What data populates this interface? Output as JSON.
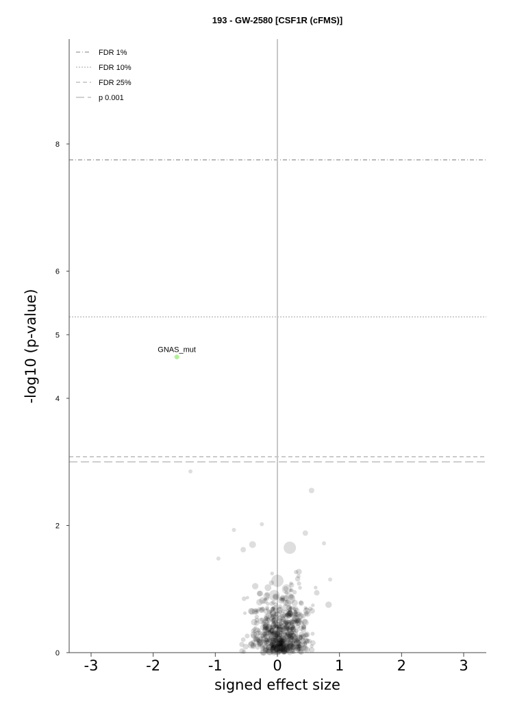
{
  "chart_data": {
    "type": "scatter",
    "title": "193 - GW-2580 [CSF1R (cFMS)]",
    "xlabel": "signed effect size",
    "ylabel": "-log10 (p-value)",
    "xlim": [
      -3.35,
      3.35
    ],
    "ylim": [
      0,
      9.6
    ],
    "xticks": [
      -3,
      -2,
      -1,
      0,
      1,
      2,
      3
    ],
    "yticks": [
      0,
      2,
      4,
      5,
      6,
      8
    ],
    "grid": false,
    "legend_position": "top-left",
    "thresholds": [
      {
        "name": "FDR 1%",
        "y": 7.75,
        "style": "dashdot",
        "color": "#999999"
      },
      {
        "name": "FDR 10%",
        "y": 5.28,
        "style": "dotted",
        "color": "#b3b3b3"
      },
      {
        "name": "FDR 25%",
        "y": 3.08,
        "style": "dashed",
        "color": "#b3b3b3"
      },
      {
        "name": "p 0.001",
        "y": 3.0,
        "style": "longdash",
        "color": "#b3b3b3"
      }
    ],
    "highlight": {
      "label": "GNAS_mut",
      "x": -1.62,
      "y": 4.65,
      "color": "#b3f09a"
    },
    "notable_points": [
      {
        "x": -1.4,
        "y": 2.85,
        "size": 3
      },
      {
        "x": 0.55,
        "y": 2.55,
        "size": 4
      },
      {
        "x": 0.2,
        "y": 1.65,
        "size": 9
      },
      {
        "x": 0.0,
        "y": 1.13,
        "size": 9
      },
      {
        "x": 0.15,
        "y": 1.0,
        "size": 7
      },
      {
        "x": 0.2,
        "y": 0.85,
        "size": 8
      },
      {
        "x": -0.05,
        "y": 0.9,
        "size": 8
      },
      {
        "x": -0.25,
        "y": 2.02,
        "size": 3
      },
      {
        "x": -0.7,
        "y": 1.93,
        "size": 3
      },
      {
        "x": 0.45,
        "y": 1.88,
        "size": 4
      },
      {
        "x": -0.4,
        "y": 1.7,
        "size": 5
      },
      {
        "x": 0.75,
        "y": 1.72,
        "size": 3
      },
      {
        "x": 0.85,
        "y": 1.15,
        "size": 3
      },
      {
        "x": -0.95,
        "y": 1.48,
        "size": 3
      },
      {
        "x": -0.55,
        "y": 1.62,
        "size": 4
      }
    ]
  }
}
